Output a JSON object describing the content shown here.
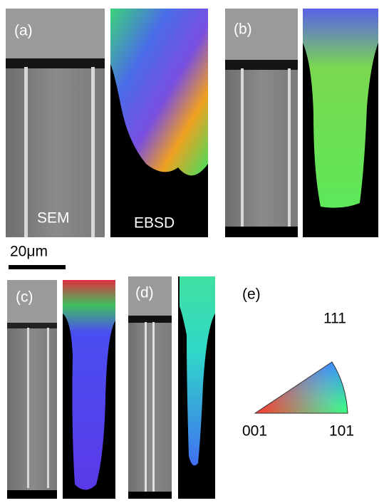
{
  "panels": {
    "a": {
      "label": "(a)",
      "sem_label": "SEM",
      "ebsd_label": "EBSD"
    },
    "b": {
      "label": "(b)"
    },
    "c": {
      "label": "(c)"
    },
    "d": {
      "label": "(d)"
    },
    "e": {
      "label": "(e)",
      "corners": {
        "top": "111",
        "left": "001",
        "right": "101"
      }
    }
  },
  "scale_bar": {
    "label": "20μm"
  }
}
